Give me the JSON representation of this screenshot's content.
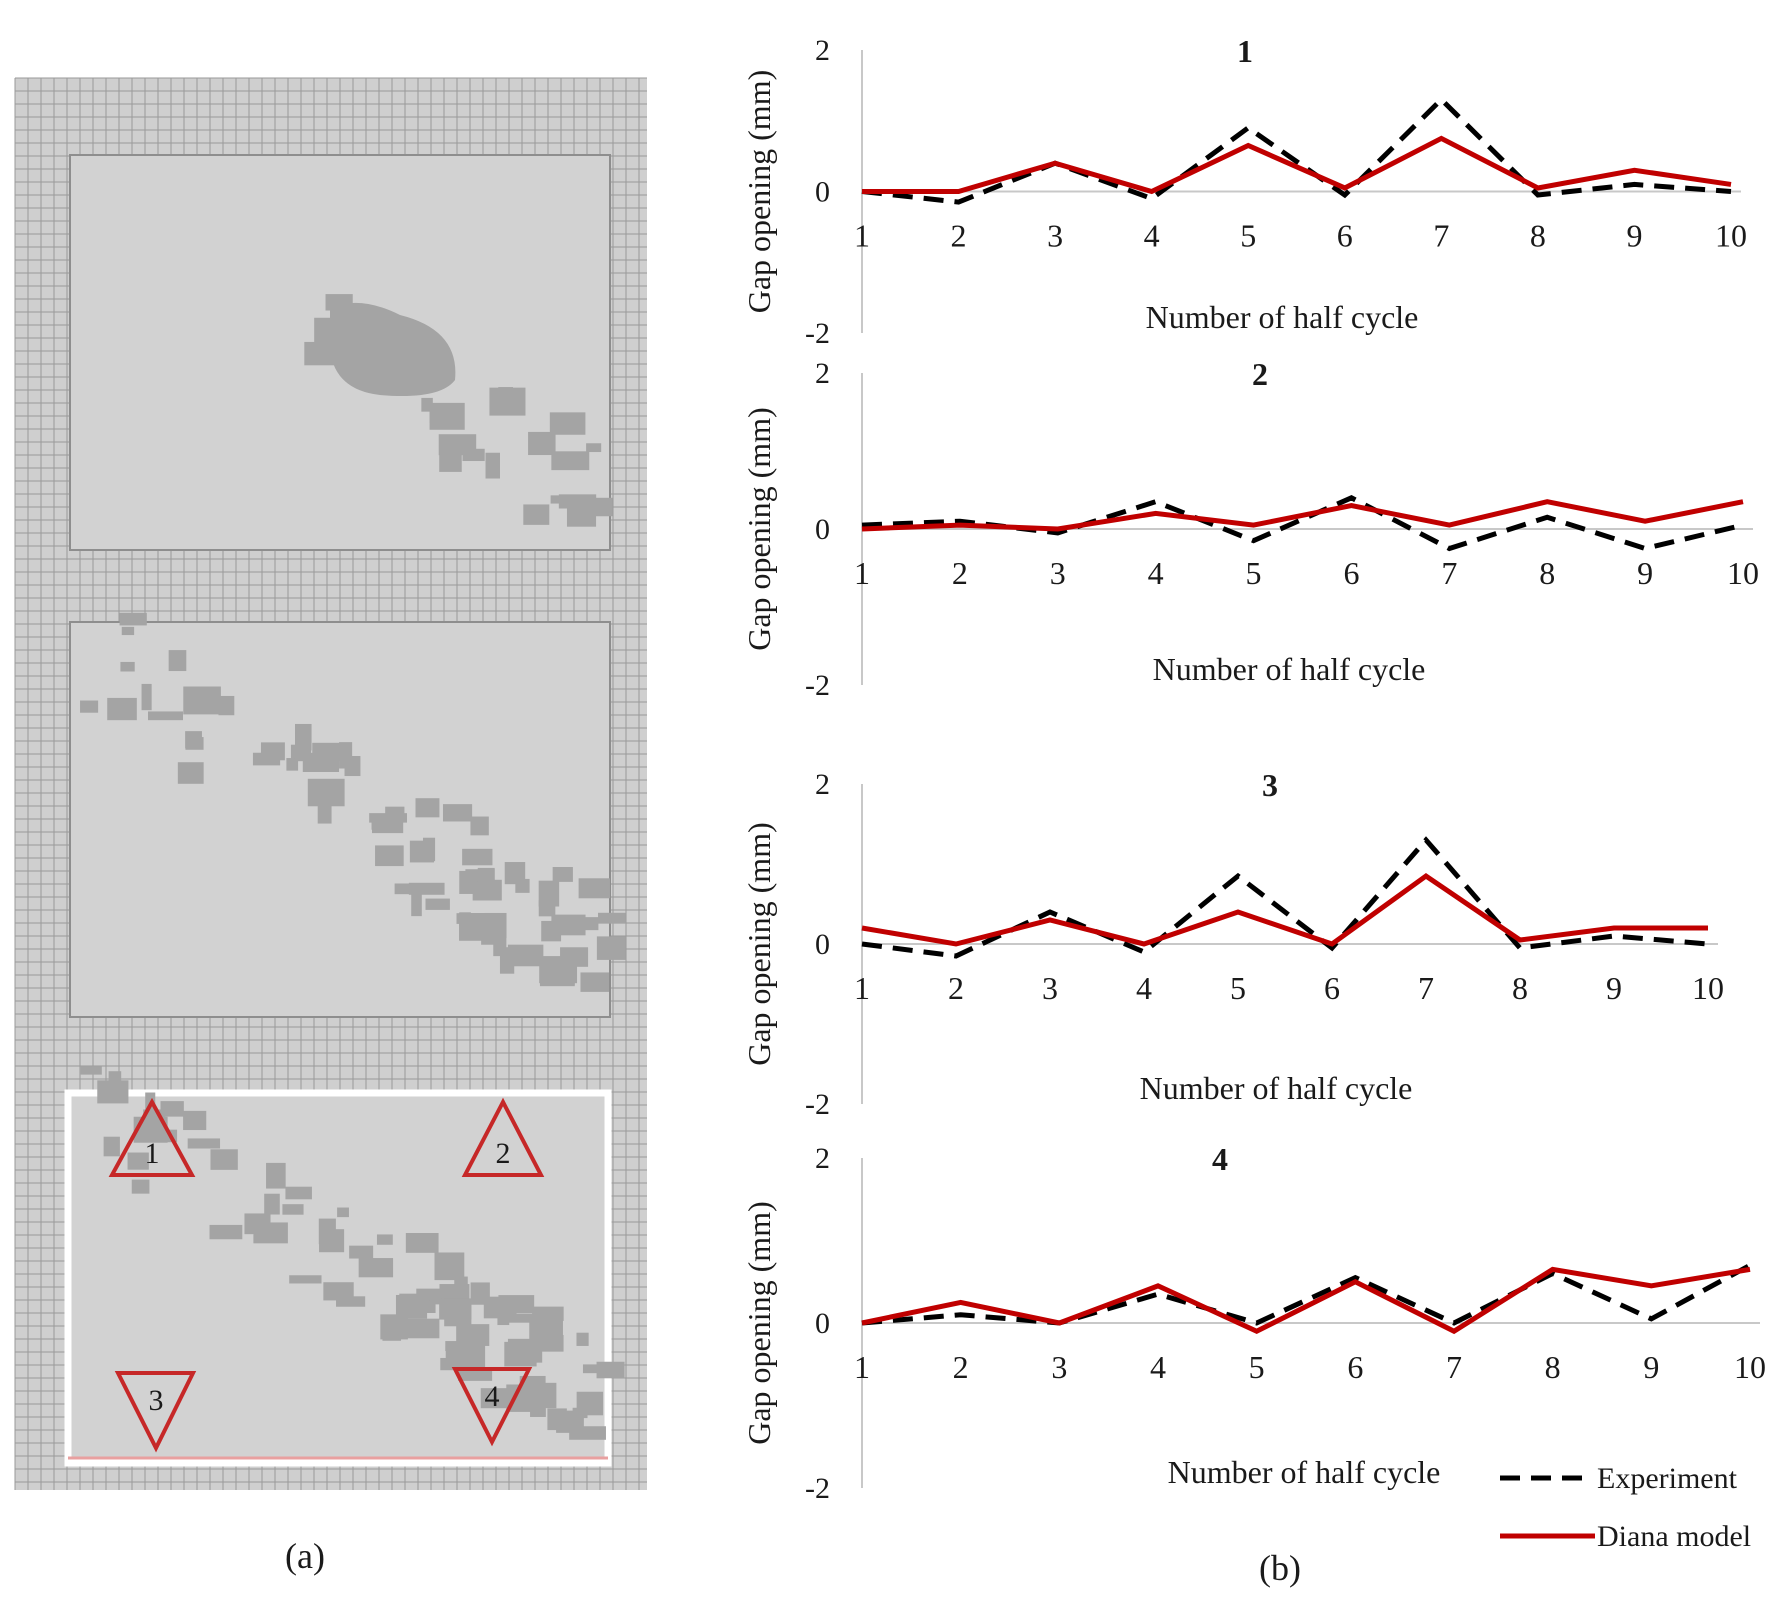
{
  "figure": {
    "caption_a": "(a)",
    "caption_b": "(b)"
  },
  "model_view": {
    "markers": [
      {
        "label": "1",
        "pointing": "up"
      },
      {
        "label": "2",
        "pointing": "up"
      },
      {
        "label": "3",
        "pointing": "down"
      },
      {
        "label": "4",
        "pointing": "down"
      }
    ],
    "colors": {
      "mesh_background": "#cfcfcf",
      "mesh_lines": "#8e8e8e",
      "crack_zones": "#a4a4a4",
      "marker": "#c62828"
    }
  },
  "colors": {
    "experiment": "#000000",
    "model": "#c00000",
    "axis": "#c8c8c8"
  },
  "legend": {
    "experiment": "Experiment",
    "model": "Diana model"
  },
  "chart_data": [
    {
      "type": "line",
      "title": "1",
      "xlabel": "Number of half cycle",
      "ylabel": "Gap opening (mm)",
      "ylim": [
        -2,
        2
      ],
      "yticks": [
        "2",
        "0",
        "-2"
      ],
      "categories": [
        "1",
        "2",
        "3",
        "4",
        "5",
        "6",
        "7",
        "8",
        "9",
        "10"
      ],
      "series": [
        {
          "name": "Experiment",
          "style": "dashed",
          "values": [
            0,
            -0.15,
            0.4,
            -0.1,
            0.9,
            -0.05,
            1.3,
            -0.05,
            0.1,
            0
          ]
        },
        {
          "name": "Diana model",
          "style": "solid",
          "values": [
            0,
            0,
            0.4,
            0,
            0.65,
            0.05,
            0.75,
            0.05,
            0.3,
            0.1
          ]
        }
      ]
    },
    {
      "type": "line",
      "title": "2",
      "xlabel": "Number of half cycle",
      "ylabel": "Gap opening (mm)",
      "ylim": [
        -2,
        2
      ],
      "yticks": [
        "2",
        "0",
        "-2"
      ],
      "categories": [
        "1",
        "2",
        "3",
        "4",
        "5",
        "6",
        "7",
        "8",
        "9",
        "10"
      ],
      "series": [
        {
          "name": "Experiment",
          "style": "dashed",
          "values": [
            0.05,
            0.1,
            -0.05,
            0.35,
            -0.15,
            0.4,
            -0.25,
            0.15,
            -0.25,
            0.05
          ]
        },
        {
          "name": "Diana model",
          "style": "solid",
          "values": [
            0,
            0.05,
            0,
            0.2,
            0.05,
            0.3,
            0.05,
            0.35,
            0.1,
            0.35
          ]
        }
      ]
    },
    {
      "type": "line",
      "title": "3",
      "xlabel": "Number of half cycle",
      "ylabel": "Gap opening (mm)",
      "ylim": [
        -2,
        2
      ],
      "yticks": [
        "2",
        "0",
        "-2"
      ],
      "categories": [
        "1",
        "2",
        "3",
        "4",
        "5",
        "6",
        "7",
        "8",
        "9",
        "10"
      ],
      "series": [
        {
          "name": "Experiment",
          "style": "dashed",
          "values": [
            0,
            -0.15,
            0.4,
            -0.1,
            0.85,
            -0.05,
            1.3,
            -0.05,
            0.1,
            0
          ]
        },
        {
          "name": "Diana model",
          "style": "solid",
          "values": [
            0.2,
            0,
            0.3,
            0,
            0.4,
            0,
            0.85,
            0.05,
            0.2,
            0.2
          ]
        }
      ]
    },
    {
      "type": "line",
      "title": "4",
      "xlabel": "Number of half cycle",
      "ylabel": "Gap opening (mm)",
      "ylim": [
        -2,
        2
      ],
      "yticks": [
        "2",
        "0",
        "-2"
      ],
      "categories": [
        "1",
        "2",
        "3",
        "4",
        "5",
        "6",
        "7",
        "8",
        "9",
        "10"
      ],
      "series": [
        {
          "name": "Experiment",
          "style": "dashed",
          "values": [
            0,
            0.1,
            0,
            0.35,
            0,
            0.55,
            0,
            0.6,
            0.05,
            0.7
          ]
        },
        {
          "name": "Diana model",
          "style": "solid",
          "values": [
            0,
            0.25,
            0,
            0.45,
            -0.1,
            0.5,
            -0.1,
            0.65,
            0.45,
            0.65
          ]
        }
      ]
    }
  ]
}
